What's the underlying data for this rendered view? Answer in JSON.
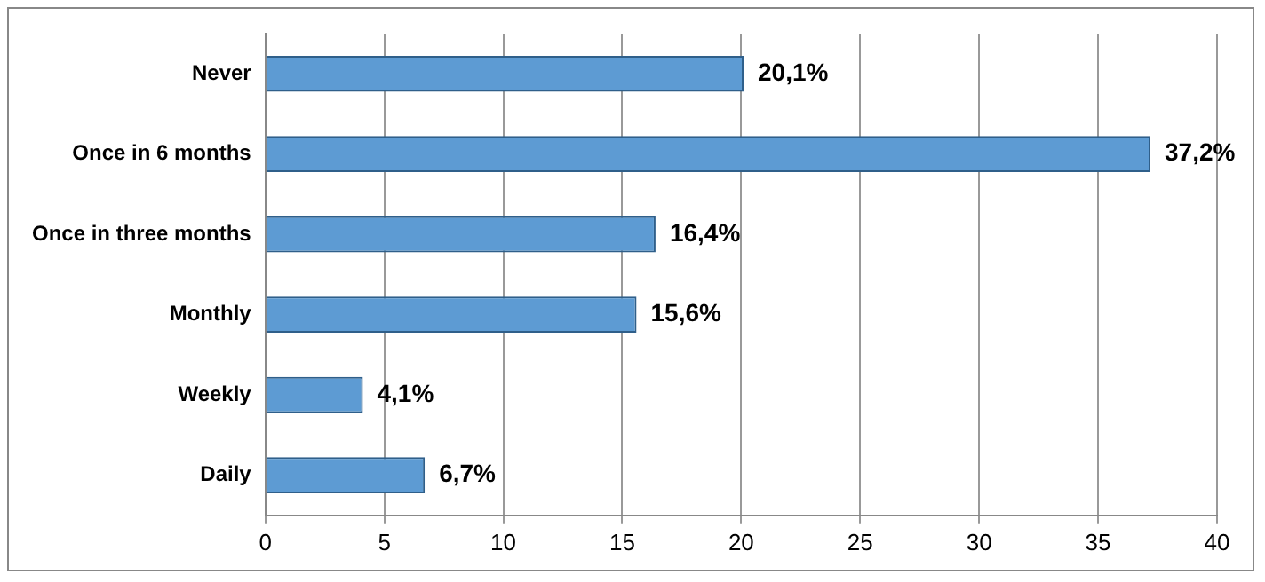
{
  "chart_data": {
    "type": "bar",
    "orientation": "horizontal",
    "categories": [
      "Never",
      "Once in 6 months",
      "Once in three months",
      "Monthly",
      "Weekly",
      "Daily"
    ],
    "values": [
      20.1,
      37.2,
      16.4,
      15.6,
      4.1,
      6.7
    ],
    "value_labels": [
      "20,1%",
      "37,2%",
      "16,4%",
      "15,6%",
      "4,1%",
      "6,7%"
    ],
    "color": "#5d9bd3",
    "xlim": [
      0,
      40
    ],
    "xticks": [
      0,
      5,
      10,
      15,
      20,
      25,
      30,
      35,
      40
    ],
    "grid": "x",
    "legend": false
  }
}
